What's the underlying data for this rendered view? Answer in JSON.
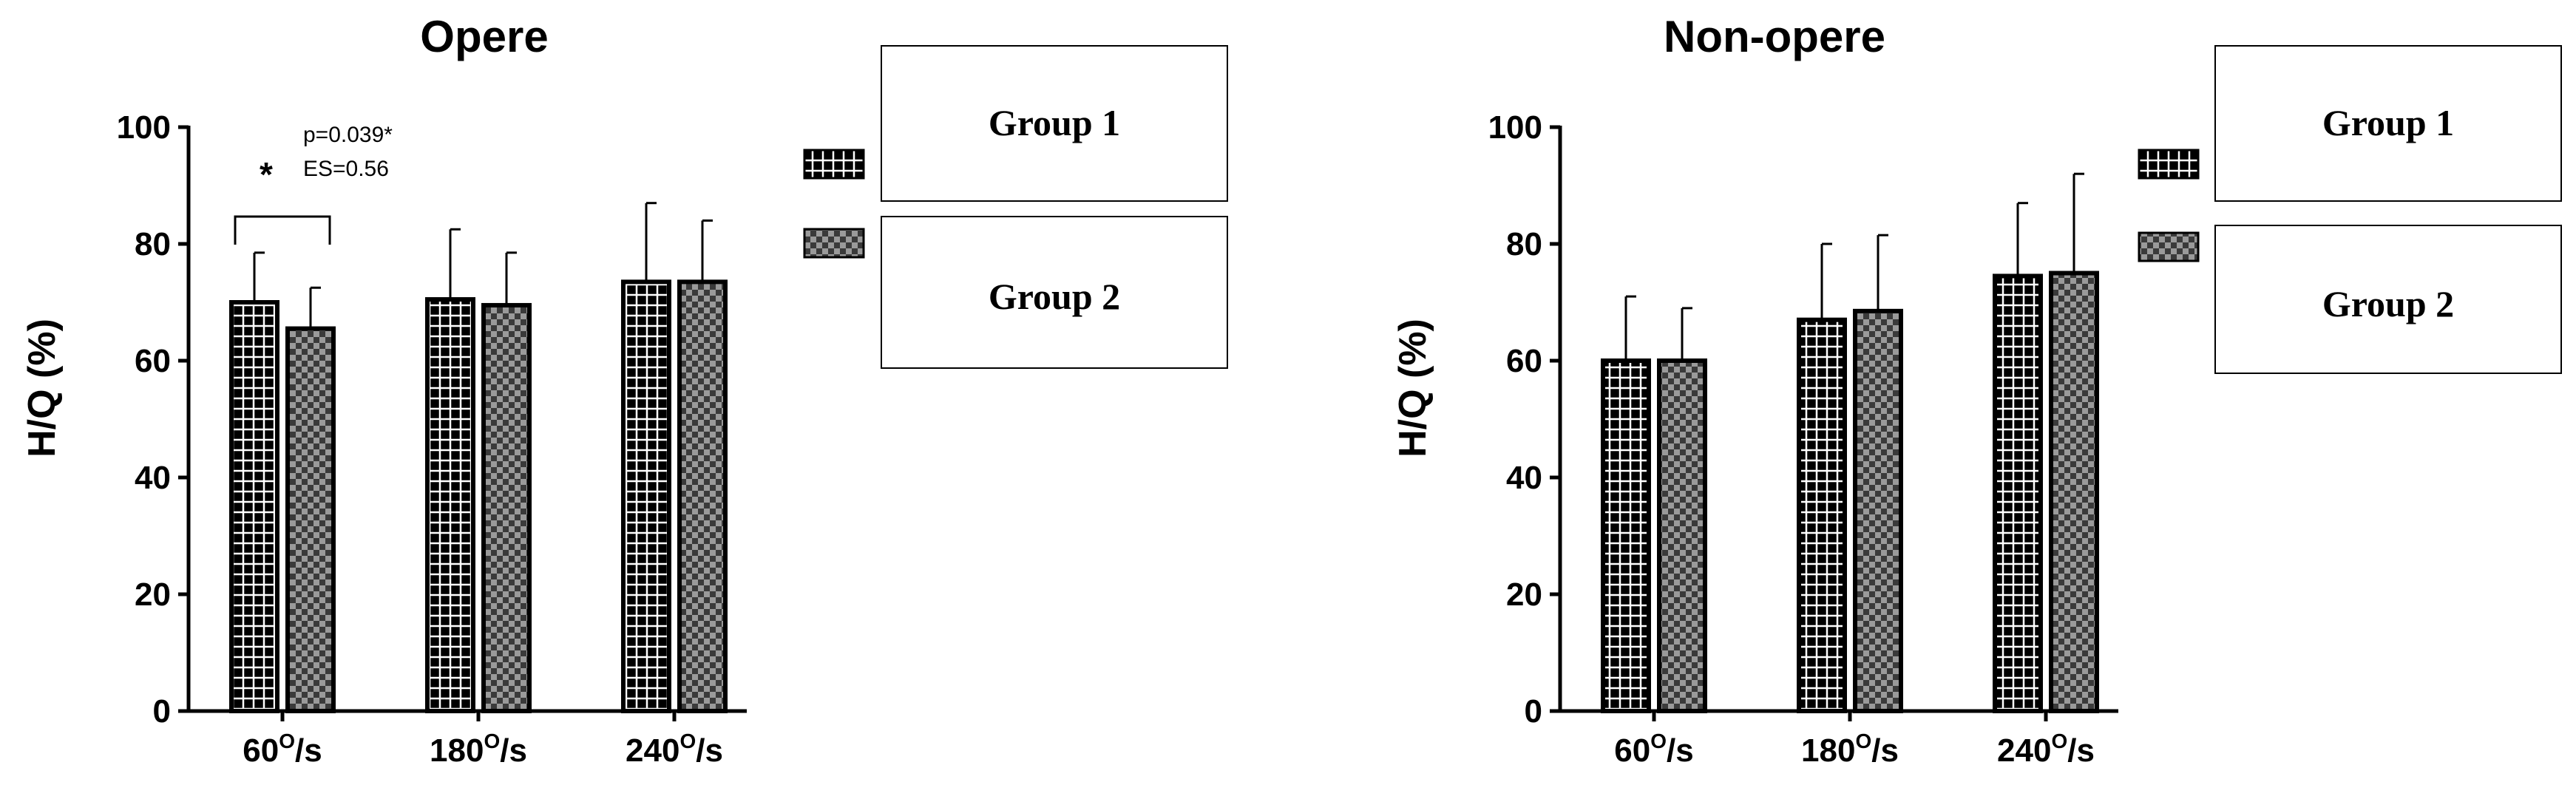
{
  "colors": {
    "bar_fill": "#000000",
    "grid_pattern": "#ffffff",
    "checker_dark": "#3a3a3a",
    "checker_light": "#9a9a9a",
    "axis": "#000000"
  },
  "legend": {
    "group1": "Group 1",
    "group2": "Group 2"
  },
  "chart_data": [
    {
      "type": "bar",
      "title": "Opere",
      "ylabel": "H/Q (%)",
      "ylim": [
        0,
        100
      ],
      "yticks": [
        0,
        20,
        40,
        60,
        80,
        100
      ],
      "categories": [
        "60",
        "180",
        "240"
      ],
      "category_unit": "/s",
      "category_superscript": "O",
      "series": [
        {
          "name": "Group 1",
          "values": [
            70,
            70.5,
            73.5
          ],
          "errors": [
            8.5,
            12,
            13.5
          ],
          "pattern": "grid"
        },
        {
          "name": "Group 2",
          "values": [
            65.5,
            69.5,
            73.5
          ],
          "errors": [
            7,
            9,
            10.5
          ],
          "pattern": "checker"
        }
      ],
      "annotation": {
        "star": "*",
        "p": "p=0.039*",
        "es": "ES=0.56",
        "category_index": 0
      }
    },
    {
      "type": "bar",
      "title": "Non-opere",
      "ylabel": "H/Q (%)",
      "ylim": [
        0,
        100
      ],
      "yticks": [
        0,
        20,
        40,
        60,
        80,
        100
      ],
      "categories": [
        "60",
        "180",
        "240"
      ],
      "category_unit": "/s",
      "category_superscript": "O",
      "series": [
        {
          "name": "Group 1",
          "values": [
            60,
            67,
            74.5
          ],
          "errors": [
            11,
            13,
            12.5
          ],
          "pattern": "grid"
        },
        {
          "name": "Group 2",
          "values": [
            60,
            68.5,
            75
          ],
          "errors": [
            9,
            13,
            17
          ],
          "pattern": "checker"
        }
      ]
    }
  ]
}
